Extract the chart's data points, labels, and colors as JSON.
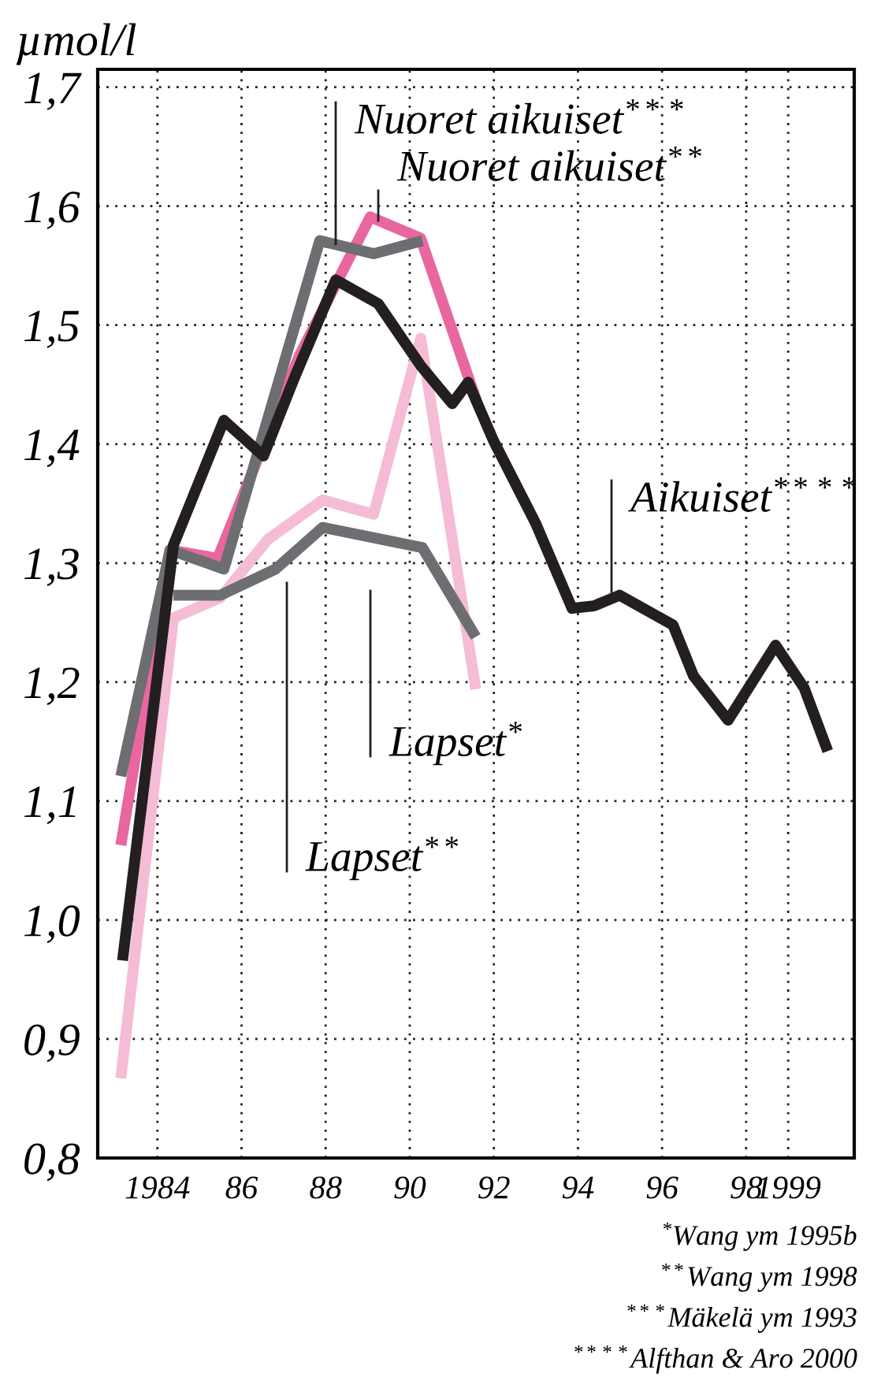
{
  "chart_data": {
    "type": "line",
    "ylabel": "µmol/l",
    "xlim": [
      1982.58,
      2000.57
    ],
    "ylim": [
      0.8,
      1.715
    ],
    "xticks": [
      1984,
      {
        "value": 1986,
        "label": "86"
      },
      {
        "value": 1988,
        "label": "88"
      },
      {
        "value": 1990,
        "label": "90"
      },
      {
        "value": 1992,
        "label": "92"
      },
      {
        "value": 1994,
        "label": "94"
      },
      {
        "value": 1996,
        "label": "96"
      },
      {
        "value": 1998,
        "label": "98"
      },
      1999
    ],
    "yticks": [
      {
        "value": 0.8,
        "label": "0,8"
      },
      {
        "value": 0.9,
        "label": "0,9"
      },
      {
        "value": 1.0,
        "label": "1,0"
      },
      {
        "value": 1.1,
        "label": "1,1"
      },
      {
        "value": 1.2,
        "label": "1,2"
      },
      {
        "value": 1.3,
        "label": "1,3"
      },
      {
        "value": 1.4,
        "label": "1,4"
      },
      {
        "value": 1.5,
        "label": "1,5"
      },
      {
        "value": 1.6,
        "label": "1,6"
      },
      {
        "value": 1.7,
        "label": "1,7"
      }
    ],
    "grid": true,
    "legend": false,
    "marker": "none",
    "line_style": "solid",
    "series": [
      {
        "name": "Lapset$^{*}$",
        "color": "#f4bcd5",
        "x": [
          1983.13,
          1984.38,
          1985.5,
          1986.63,
          1987.93,
          1989.14,
          1990.26,
          1991.57
        ],
        "values": [
          0.867,
          1.254,
          1.271,
          1.32,
          1.353,
          1.341,
          1.489,
          1.194
        ]
      },
      {
        "name": "Lapset$^{**}$",
        "color": "#6d6e71",
        "x": [
          1984.38,
          1985.5,
          1986.81,
          1987.93,
          1990.3,
          1991.57
        ],
        "values": [
          1.273,
          1.273,
          1.295,
          1.33,
          1.313,
          1.238
        ]
      },
      {
        "name": "Nuoret aikuiset$^{**}$",
        "color": "#e9679f",
        "x": [
          1983.13,
          1984.3,
          1985.43,
          1987.37,
          1989.06,
          1990.26,
          1991.61
        ],
        "values": [
          1.063,
          1.311,
          1.304,
          1.474,
          1.591,
          1.573,
          1.434
        ]
      },
      {
        "name": "Nuoret aikuiset$^{***}$",
        "color": "#6d6e71",
        "x": [
          1983.13,
          1984.3,
          1985.58,
          1987.86,
          1989.14,
          1990.3
        ],
        "values": [
          1.121,
          1.311,
          1.295,
          1.571,
          1.56,
          1.571
        ]
      },
      {
        "name": "Aikuiset$^{****}$",
        "color": "#231f20",
        "x": [
          1983.17,
          1984.38,
          1985.58,
          1986.52,
          1987.26,
          1988.24,
          1989.25,
          1990.26,
          1991.01,
          1991.39,
          1991.99,
          1993.0,
          1993.86,
          1994.38,
          1994.99,
          1996.26,
          1996.75,
          1997.57,
          1998.7,
          1999.38,
          1999.94
        ],
        "values": [
          0.966,
          1.315,
          1.42,
          1.39,
          1.456,
          1.538,
          1.518,
          1.466,
          1.434,
          1.452,
          1.403,
          1.333,
          1.262,
          1.264,
          1.273,
          1.248,
          1.205,
          1.168,
          1.231,
          1.195,
          1.142
        ]
      }
    ],
    "annotations": [
      "$^{*}$Wang ym 1995b",
      "$^{**}$Wang ym 1998",
      "$^{***}$Mäkelä ym 1993",
      "$^{****}$Alfthan & Aro 2000"
    ]
  }
}
